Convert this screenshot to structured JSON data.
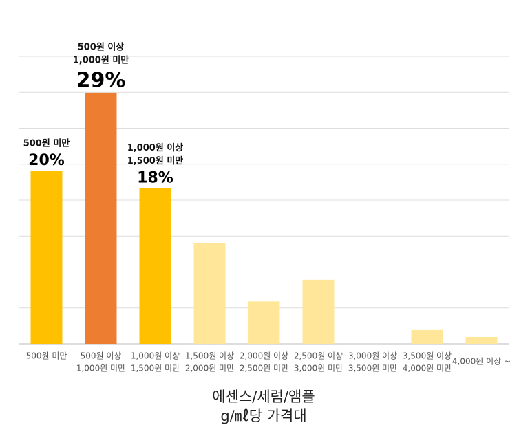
{
  "chart_data": {
    "type": "bar",
    "categories": [
      [
        "500원 미만"
      ],
      [
        "500원 이상",
        "1,000원 미만"
      ],
      [
        "1,000원 이상",
        "1,500원 미만"
      ],
      [
        "1,500원 이상",
        "2,000원 미만"
      ],
      [
        "2,000원 이상",
        "2,500원 미만"
      ],
      [
        "2,500원 이상",
        "3,000원 미만"
      ],
      [
        "3,000원 이상",
        "3,500원 미만"
      ],
      [
        "3,500원 이상",
        "4,000원 미만"
      ],
      [
        "4,000원 이상 ~"
      ]
    ],
    "values": [
      20,
      29,
      18,
      11.6,
      4.9,
      7.4,
      0,
      1.6,
      0.8
    ],
    "value_labels": [
      "20%",
      "29%",
      "18%",
      null,
      null,
      null,
      null,
      null,
      null
    ],
    "colors": [
      "#ffc000",
      "#ed7d31",
      "#ffc000",
      "#ffe699",
      "#ffe699",
      "#ffe699",
      "#ffe699",
      "#ffe699",
      "#ffe699"
    ],
    "x_label": [
      "에센스/세럼/앰플",
      "g/㎖당 가격대"
    ],
    "ylim": [
      0,
      33.2
    ],
    "yticks": [
      0,
      4.15,
      8.3,
      12.45,
      16.6,
      20.75,
      24.9,
      29.05,
      33.2
    ],
    "grid": true
  }
}
